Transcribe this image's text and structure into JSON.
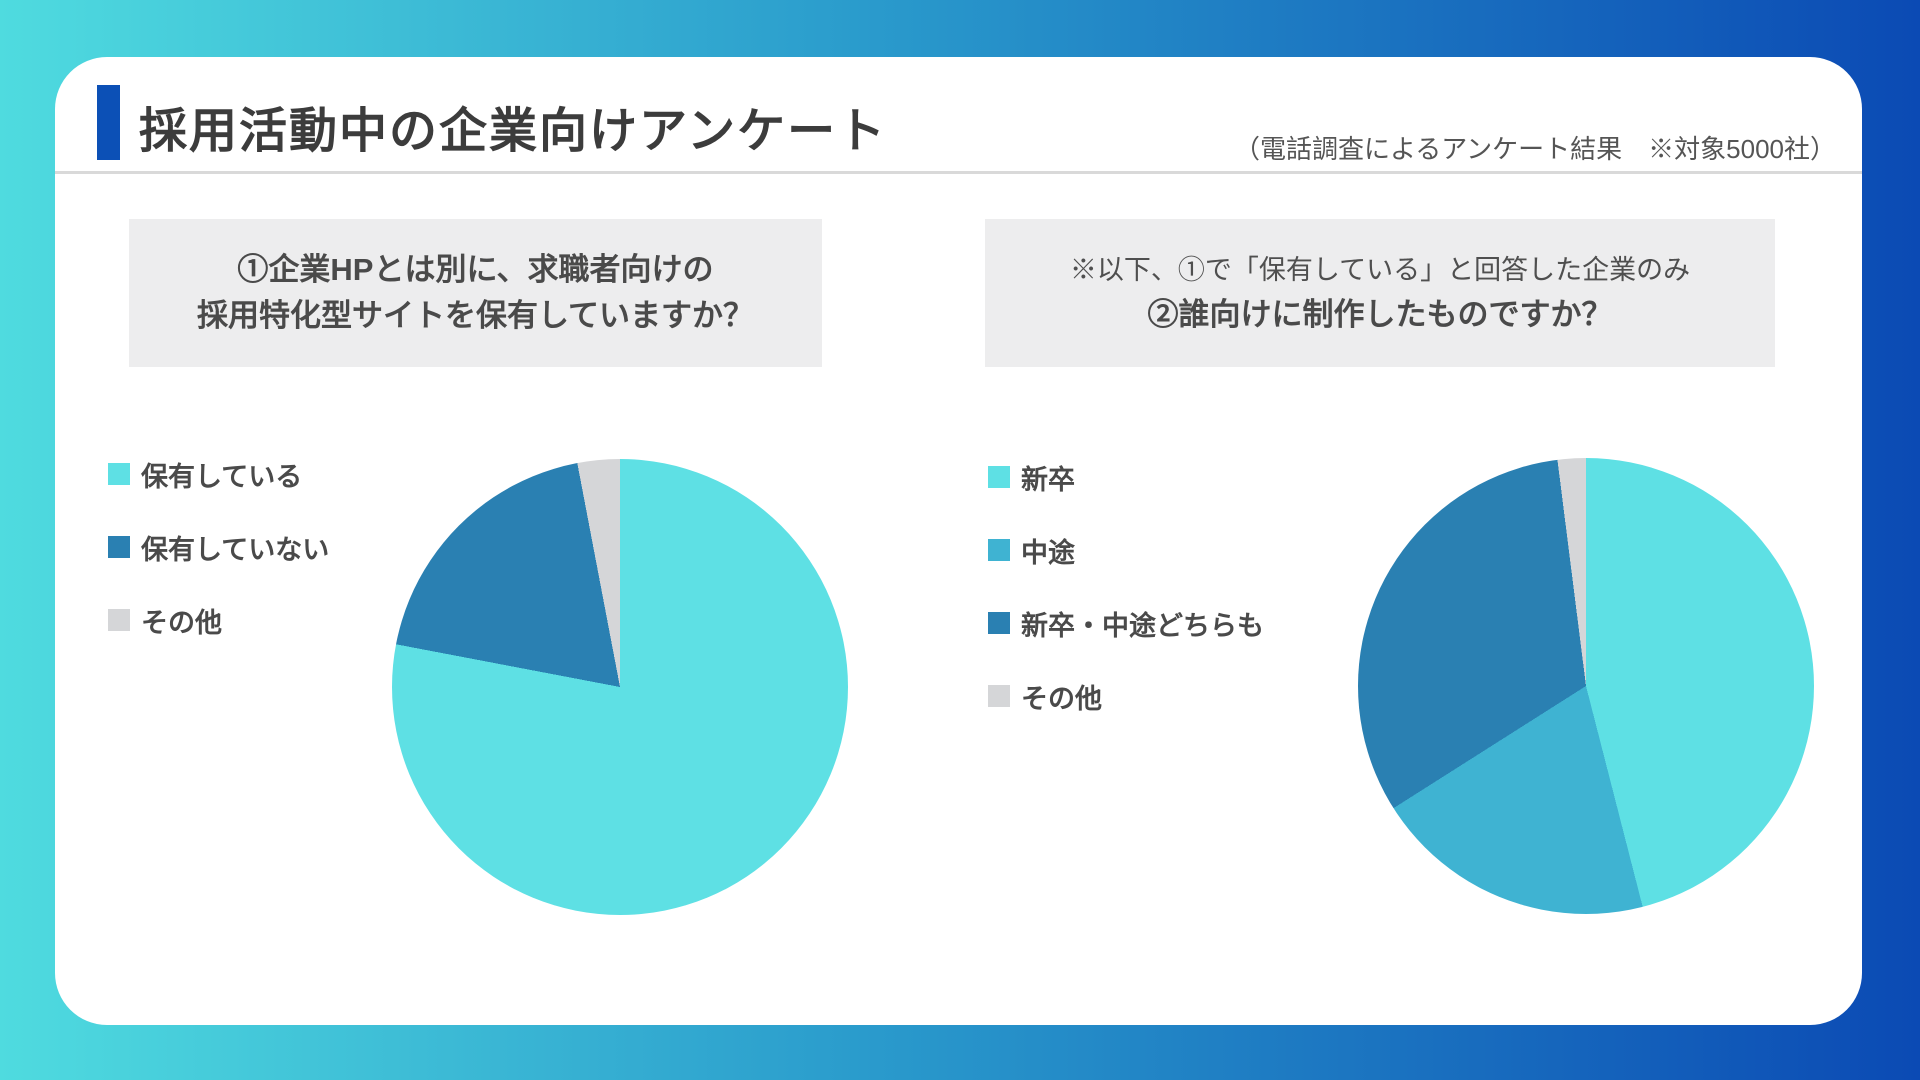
{
  "header": {
    "title": "採用活動中の企業向けアンケート",
    "subtitle": "（電話調査によるアンケート結果　※対象5000社）"
  },
  "charts": [
    {
      "question_lines": [
        "①企業HPとは別に、求職者向けの",
        "採用特化型サイトを保有していますか？"
      ]
    },
    {
      "note": "※以下、①で「保有している」と回答した企業のみ",
      "question_lines": [
        "②誰向けに制作したものですか？"
      ]
    }
  ],
  "chart_data": [
    {
      "type": "pie",
      "title": "①企業HPとは別に、求職者向けの採用特化型サイトを保有していますか？",
      "labels": [
        "保有している",
        "保有していない",
        "その他"
      ],
      "values": [
        78,
        19,
        3
      ],
      "unit": "%",
      "values_note": "percentages estimated from slice angles; no numeric labels shown in image",
      "colors": [
        "#5EE0E4",
        "#2A80B2",
        "#D5D6D8"
      ],
      "start_angle_deg": 0,
      "direction": "clockwise",
      "legend_position": "left"
    },
    {
      "type": "pie",
      "title": "②誰向けに制作したものですか？",
      "note": "※以下、①で「保有している」と回答した企業のみ",
      "labels": [
        "新卒",
        "中途",
        "新卒・中途どちらも",
        "その他"
      ],
      "values": [
        46,
        20,
        32,
        2
      ],
      "unit": "%",
      "values_note": "percentages estimated from slice angles; no numeric labels shown in image",
      "colors": [
        "#5EE0E4",
        "#3FB3D2",
        "#2A80B2",
        "#D5D6D8"
      ],
      "start_angle_deg": 0,
      "direction": "clockwise",
      "legend_position": "left"
    }
  ],
  "style": {
    "background_gradient": [
      "#4FDBDF",
      "#0B4AB4"
    ],
    "accent_bar_color": "#0C50B6",
    "question_box_bg": "#EDEDEE",
    "divider_color": "#D9D9D9",
    "title_color": "#3C3C3C",
    "text_color": "#4A4A4A"
  }
}
